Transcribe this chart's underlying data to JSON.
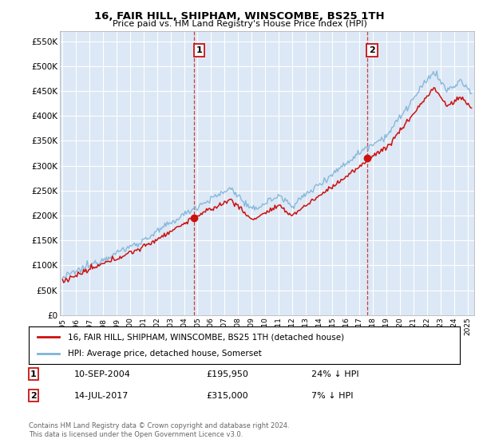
{
  "title": "16, FAIR HILL, SHIPHAM, WINSCOMBE, BS25 1TH",
  "subtitle": "Price paid vs. HM Land Registry's House Price Index (HPI)",
  "ylim": [
    0,
    570000
  ],
  "yticks": [
    0,
    50000,
    100000,
    150000,
    200000,
    250000,
    300000,
    350000,
    400000,
    450000,
    500000,
    550000
  ],
  "ytick_labels": [
    "£0",
    "£50K",
    "£100K",
    "£150K",
    "£200K",
    "£250K",
    "£300K",
    "£350K",
    "£400K",
    "£450K",
    "£500K",
    "£550K"
  ],
  "background_color": "#ffffff",
  "plot_bg_color": "#dce8f5",
  "grid_color": "#ffffff",
  "hpi_color": "#7fb3d9",
  "price_color": "#cc1111",
  "sale1_price": 195950,
  "sale1_date": "10-SEP-2004",
  "sale1_label": "24% ↓ HPI",
  "sale1_year": 2004.75,
  "sale2_price": 315000,
  "sale2_date": "14-JUL-2017",
  "sale2_label": "7% ↓ HPI",
  "sale2_year": 2017.55,
  "legend_line1": "16, FAIR HILL, SHIPHAM, WINSCOMBE, BS25 1TH (detached house)",
  "legend_line2": "HPI: Average price, detached house, Somerset",
  "footer": "Contains HM Land Registry data © Crown copyright and database right 2024.\nThis data is licensed under the Open Government Licence v3.0.",
  "xmin": 1994.8,
  "xmax": 2025.5
}
